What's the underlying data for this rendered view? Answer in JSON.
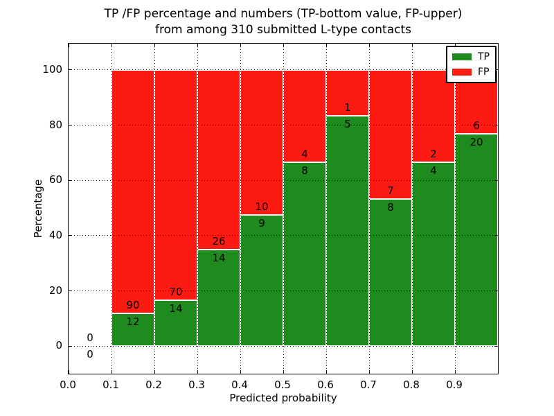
{
  "title": {
    "line1": "TP /FP percentage and numbers (TP-bottom value, FP-upper)",
    "line2": "from among 310 submitted L-type contacts"
  },
  "chart_data": {
    "type": "bar",
    "subtype": "stacked-percentage-bar",
    "title": "TP /FP percentage and numbers (TP-bottom value, FP-upper)\nfrom among 310 submitted L-type contacts",
    "xlabel": "Predicted probability",
    "ylabel": "Percentage",
    "xlim": [
      0.0,
      1.0
    ],
    "ylim": [
      -10,
      109.5
    ],
    "grid": {
      "style": "dotted",
      "above_bars": true
    },
    "xticks": [
      {
        "value": 0.0,
        "label": "0.0"
      },
      {
        "value": 0.1,
        "label": "0.1"
      },
      {
        "value": 0.2,
        "label": "0.2"
      },
      {
        "value": 0.3,
        "label": "0.3"
      },
      {
        "value": 0.4,
        "label": "0.4"
      },
      {
        "value": 0.5,
        "label": "0.5"
      },
      {
        "value": 0.6,
        "label": "0.6"
      },
      {
        "value": 0.7,
        "label": "0.7"
      },
      {
        "value": 0.8,
        "label": "0.8"
      },
      {
        "value": 0.9,
        "label": "0.9"
      }
    ],
    "yticks": [
      {
        "value": 0,
        "label": "0"
      },
      {
        "value": 20,
        "label": "20"
      },
      {
        "value": 40,
        "label": "40"
      },
      {
        "value": 60,
        "label": "60"
      },
      {
        "value": 80,
        "label": "80"
      },
      {
        "value": 100,
        "label": "100"
      }
    ],
    "colors": {
      "tp": "#1f8b1f",
      "fp": "#fc1b13",
      "edge": "#ffffff"
    },
    "legend": {
      "position": "upper-right",
      "entries": [
        {
          "label": "TP",
          "color": "#1f8b1f"
        },
        {
          "label": "FP",
          "color": "#fc1b13"
        }
      ]
    },
    "bins": [
      {
        "range": [
          0.0,
          0.1
        ],
        "tp": 0,
        "fp": 0
      },
      {
        "range": [
          0.1,
          0.2
        ],
        "tp": 12,
        "fp": 90
      },
      {
        "range": [
          0.2,
          0.3
        ],
        "tp": 14,
        "fp": 70
      },
      {
        "range": [
          0.3,
          0.4
        ],
        "tp": 14,
        "fp": 26
      },
      {
        "range": [
          0.4,
          0.5
        ],
        "tp": 9,
        "fp": 10
      },
      {
        "range": [
          0.5,
          0.6
        ],
        "tp": 8,
        "fp": 4
      },
      {
        "range": [
          0.6,
          0.7
        ],
        "tp": 5,
        "fp": 1
      },
      {
        "range": [
          0.7,
          0.8
        ],
        "tp": 8,
        "fp": 7
      },
      {
        "range": [
          0.8,
          0.9
        ],
        "tp": 4,
        "fp": 2
      },
      {
        "range": [
          0.9,
          1.0
        ],
        "tp": 20,
        "fp": 6
      }
    ]
  }
}
